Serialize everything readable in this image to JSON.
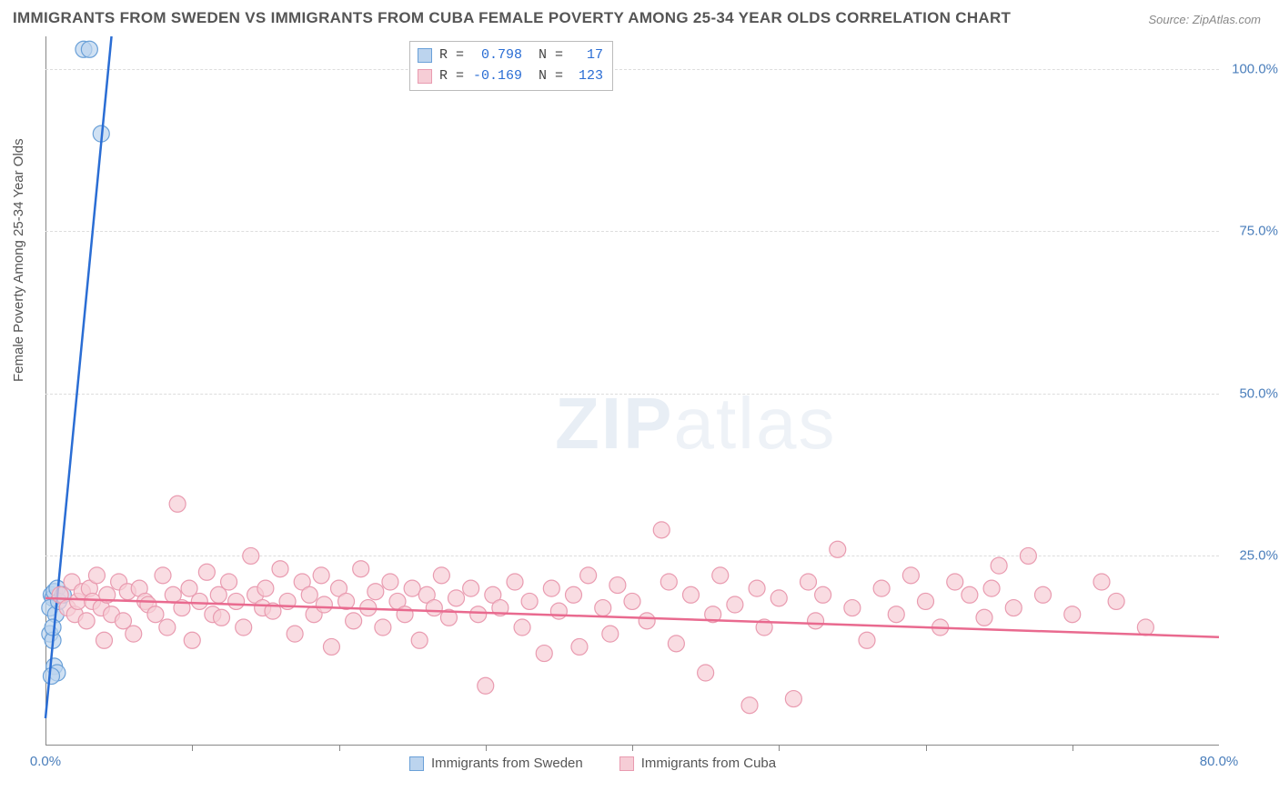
{
  "title": "IMMIGRANTS FROM SWEDEN VS IMMIGRANTS FROM CUBA FEMALE POVERTY AMONG 25-34 YEAR OLDS CORRELATION CHART",
  "source": "Source: ZipAtlas.com",
  "y_axis_label": "Female Poverty Among 25-34 Year Olds",
  "watermark_a": "ZIP",
  "watermark_b": "atlas",
  "chart": {
    "type": "scatter",
    "xlim": [
      0,
      80
    ],
    "ylim": [
      0,
      105
    ],
    "x_ticks_minor": [
      10,
      20,
      30,
      40,
      50,
      60,
      70
    ],
    "x_tick_labels": [
      {
        "val": 0,
        "label": "0.0%"
      },
      {
        "val": 80,
        "label": "80.0%"
      }
    ],
    "y_tick_labels": [
      {
        "val": 25,
        "label": "25.0%"
      },
      {
        "val": 50,
        "label": "50.0%"
      },
      {
        "val": 75,
        "label": "75.0%"
      },
      {
        "val": 100,
        "label": "100.0%"
      }
    ],
    "grid_color": "#dddddd",
    "background_color": "#ffffff",
    "plot_inner_height": 780,
    "plot_inner_width": 1290
  },
  "series": [
    {
      "name": "Immigrants from Sweden",
      "color_fill": "#bcd4ee",
      "color_stroke": "#6aa0d8",
      "line_color": "#2a6dd4",
      "marker_radius": 9,
      "marker_opacity": 0.7,
      "stats": {
        "R": "0.798",
        "N": "17"
      },
      "trend": {
        "x1": 0,
        "y1": 0,
        "x2": 4.5,
        "y2": 105
      },
      "points": [
        [
          0.4,
          19
        ],
        [
          0.5,
          18.5
        ],
        [
          0.6,
          19.5
        ],
        [
          0.8,
          20
        ],
        [
          0.3,
          13
        ],
        [
          0.5,
          12
        ],
        [
          0.6,
          8
        ],
        [
          0.8,
          7
        ],
        [
          0.4,
          6.5
        ],
        [
          0.3,
          17
        ],
        [
          0.7,
          16
        ],
        [
          0.9,
          18
        ],
        [
          1.2,
          19
        ],
        [
          2.6,
          103
        ],
        [
          3.0,
          103
        ],
        [
          3.8,
          90
        ],
        [
          0.5,
          14
        ]
      ]
    },
    {
      "name": "Immigrants from Cuba",
      "color_fill": "#f6cdd6",
      "color_stroke": "#e99bb0",
      "line_color": "#e96a8f",
      "marker_radius": 9,
      "marker_opacity": 0.7,
      "stats": {
        "R": "-0.169",
        "N": "123"
      },
      "trend": {
        "x1": 0,
        "y1": 18.5,
        "x2": 80,
        "y2": 12.5
      },
      "points": [
        [
          1,
          19
        ],
        [
          1.5,
          17
        ],
        [
          1.8,
          21
        ],
        [
          2,
          16
        ],
        [
          2.2,
          18
        ],
        [
          2.5,
          19.5
        ],
        [
          2.8,
          15
        ],
        [
          3,
          20
        ],
        [
          3.2,
          18
        ],
        [
          3.5,
          22
        ],
        [
          3.8,
          17
        ],
        [
          4,
          12
        ],
        [
          4.2,
          19
        ],
        [
          4.5,
          16
        ],
        [
          5,
          21
        ],
        [
          5.3,
          15
        ],
        [
          5.6,
          19.5
        ],
        [
          6,
          13
        ],
        [
          6.4,
          20
        ],
        [
          6.8,
          18
        ],
        [
          7,
          17.5
        ],
        [
          7.5,
          16
        ],
        [
          8,
          22
        ],
        [
          8.3,
          14
        ],
        [
          8.7,
          19
        ],
        [
          9,
          33
        ],
        [
          9.3,
          17
        ],
        [
          9.8,
          20
        ],
        [
          10,
          12
        ],
        [
          10.5,
          18
        ],
        [
          11,
          22.5
        ],
        [
          11.4,
          16
        ],
        [
          11.8,
          19
        ],
        [
          12,
          15.5
        ],
        [
          12.5,
          21
        ],
        [
          13,
          18
        ],
        [
          13.5,
          14
        ],
        [
          14,
          25
        ],
        [
          14.3,
          19
        ],
        [
          14.8,
          17
        ],
        [
          15,
          20
        ],
        [
          15.5,
          16.5
        ],
        [
          16,
          23
        ],
        [
          16.5,
          18
        ],
        [
          17,
          13
        ],
        [
          17.5,
          21
        ],
        [
          18,
          19
        ],
        [
          18.3,
          16
        ],
        [
          18.8,
          22
        ],
        [
          19,
          17.5
        ],
        [
          19.5,
          11
        ],
        [
          20,
          20
        ],
        [
          20.5,
          18
        ],
        [
          21,
          15
        ],
        [
          21.5,
          23
        ],
        [
          22,
          17
        ],
        [
          22.5,
          19.5
        ],
        [
          23,
          14
        ],
        [
          23.5,
          21
        ],
        [
          24,
          18
        ],
        [
          24.5,
          16
        ],
        [
          25,
          20
        ],
        [
          25.5,
          12
        ],
        [
          26,
          19
        ],
        [
          26.5,
          17
        ],
        [
          27,
          22
        ],
        [
          27.5,
          15.5
        ],
        [
          28,
          18.5
        ],
        [
          29,
          20
        ],
        [
          29.5,
          16
        ],
        [
          30,
          5
        ],
        [
          30.5,
          19
        ],
        [
          31,
          17
        ],
        [
          32,
          21
        ],
        [
          32.5,
          14
        ],
        [
          33,
          18
        ],
        [
          34,
          10
        ],
        [
          34.5,
          20
        ],
        [
          35,
          16.5
        ],
        [
          36,
          19
        ],
        [
          36.4,
          11
        ],
        [
          37,
          22
        ],
        [
          38,
          17
        ],
        [
          38.5,
          13
        ],
        [
          39,
          20.5
        ],
        [
          40,
          18
        ],
        [
          41,
          15
        ],
        [
          42,
          29
        ],
        [
          42.5,
          21
        ],
        [
          43,
          11.5
        ],
        [
          44,
          19
        ],
        [
          45,
          7
        ],
        [
          45.5,
          16
        ],
        [
          46,
          22
        ],
        [
          47,
          17.5
        ],
        [
          48,
          2
        ],
        [
          48.5,
          20
        ],
        [
          49,
          14
        ],
        [
          50,
          18.5
        ],
        [
          51,
          3
        ],
        [
          52,
          21
        ],
        [
          52.5,
          15
        ],
        [
          53,
          19
        ],
        [
          54,
          26
        ],
        [
          55,
          17
        ],
        [
          56,
          12
        ],
        [
          57,
          20
        ],
        [
          58,
          16
        ],
        [
          59,
          22
        ],
        [
          60,
          18
        ],
        [
          61,
          14
        ],
        [
          62,
          21
        ],
        [
          63,
          19
        ],
        [
          64,
          15.5
        ],
        [
          64.5,
          20
        ],
        [
          65,
          23.5
        ],
        [
          66,
          17
        ],
        [
          67,
          25
        ],
        [
          68,
          19
        ],
        [
          70,
          16
        ],
        [
          72,
          21
        ],
        [
          73,
          18
        ],
        [
          75,
          14
        ]
      ]
    }
  ],
  "legend_stats_header": {
    "R": "R =",
    "N": "N ="
  },
  "bottom_legend": [
    {
      "label": "Immigrants from Sweden",
      "fill": "#bcd4ee",
      "stroke": "#6aa0d8"
    },
    {
      "label": "Immigrants from Cuba",
      "fill": "#f6cdd6",
      "stroke": "#e99bb0"
    }
  ]
}
